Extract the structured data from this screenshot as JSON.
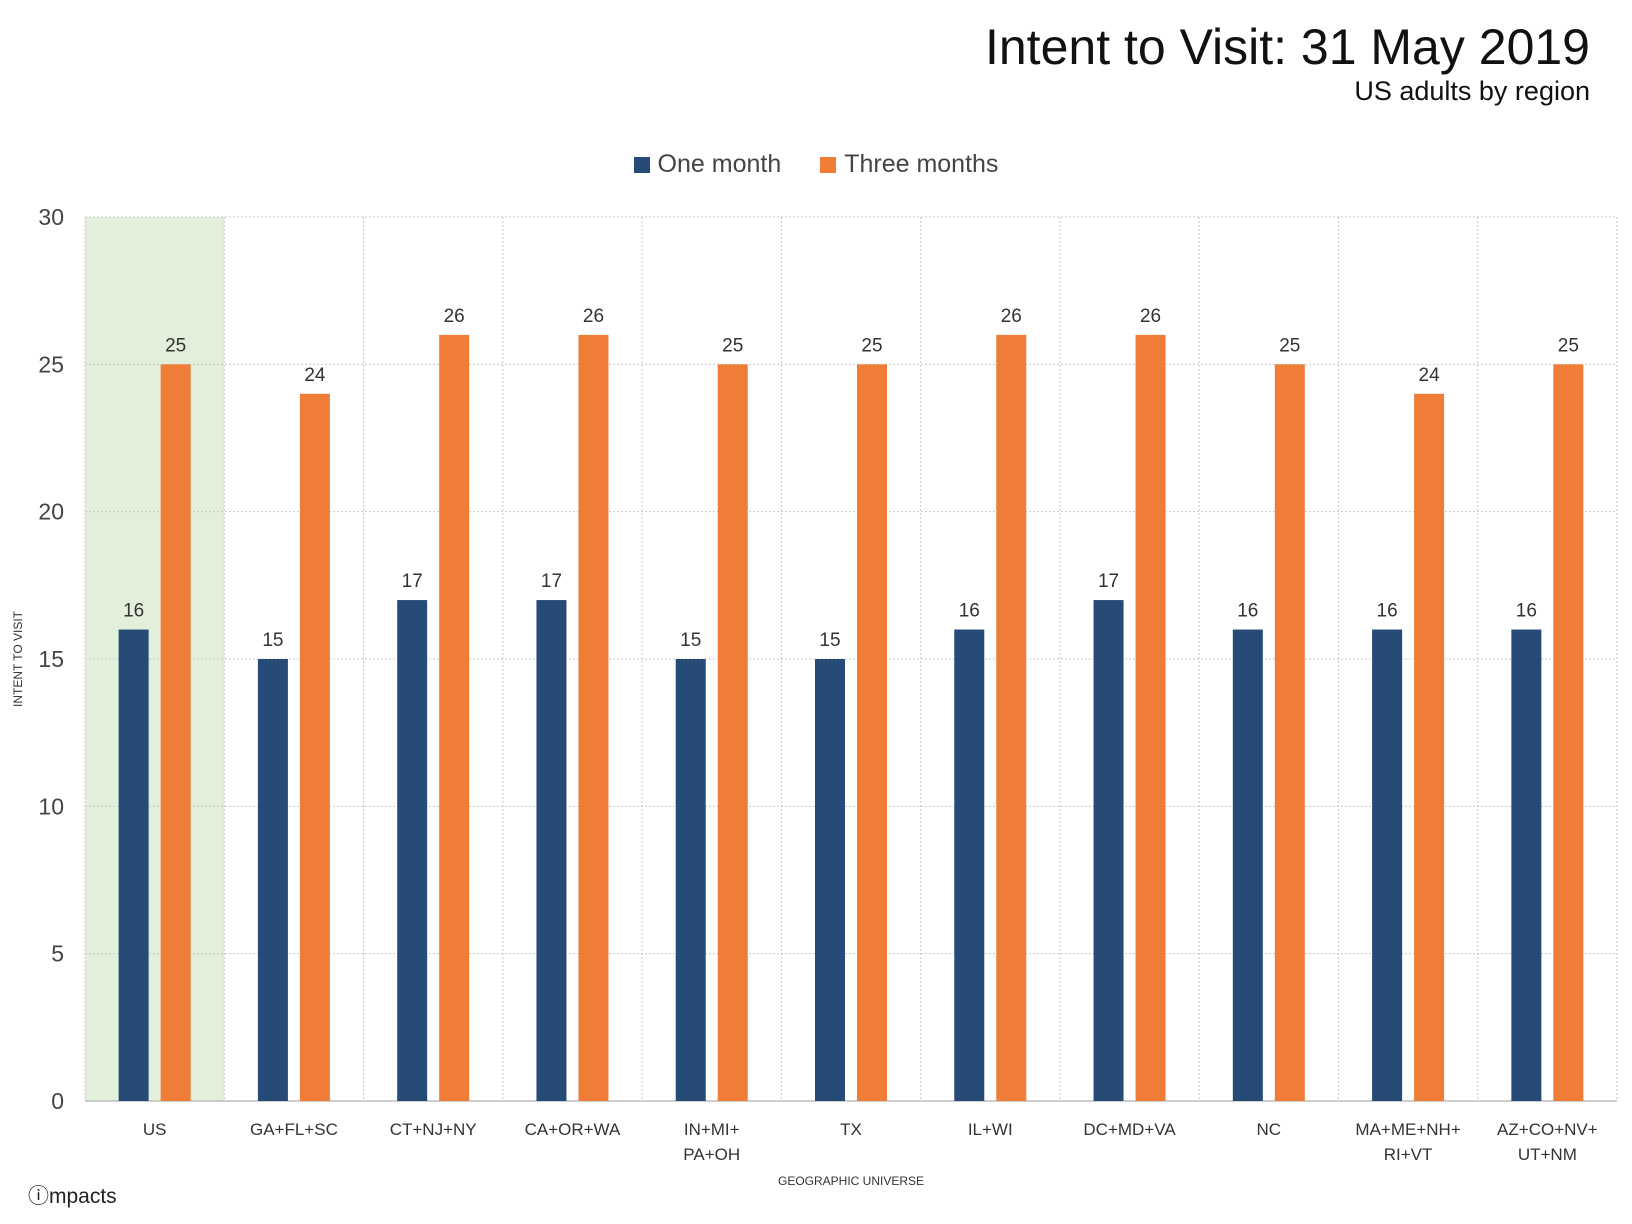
{
  "chart_data": {
    "type": "bar",
    "title": "Intent to Visit: 31 May 2019",
    "subtitle": "US adults by region",
    "xlabel": "GEOGRAPHIC UNIVERSE",
    "ylabel": "INTENT TO VISIT",
    "ylim": [
      0,
      30
    ],
    "yticks": [
      0,
      5,
      10,
      15,
      20,
      25,
      30
    ],
    "grid": true,
    "legend_position": "top-center",
    "highlight_category": "US",
    "categories": [
      [
        "US"
      ],
      [
        "GA+FL+SC"
      ],
      [
        "CT+NJ+NY"
      ],
      [
        "CA+OR+WA"
      ],
      [
        "IN+MI+",
        "PA+OH"
      ],
      [
        "TX"
      ],
      [
        "IL+WI"
      ],
      [
        "DC+MD+VA"
      ],
      [
        "NC"
      ],
      [
        "MA+ME+NH+",
        "RI+VT"
      ],
      [
        "AZ+CO+NV+",
        "UT+NM"
      ]
    ],
    "series": [
      {
        "name": "One month",
        "color": "#264b77",
        "values": [
          16,
          15,
          17,
          17,
          15,
          15,
          16,
          17,
          16,
          16,
          16
        ]
      },
      {
        "name": "Three months",
        "color": "#ef7d37",
        "values": [
          25,
          24,
          26,
          26,
          25,
          25,
          26,
          26,
          25,
          24,
          25
        ]
      }
    ]
  },
  "brand": "ⓘmpacts"
}
